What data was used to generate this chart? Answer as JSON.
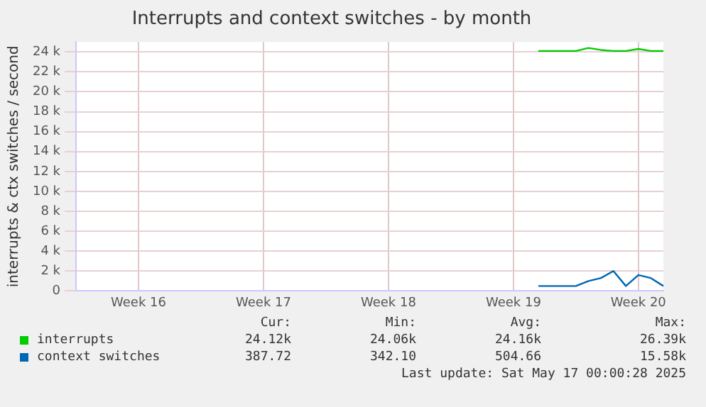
{
  "chart_data": {
    "type": "line",
    "title": "Interrupts and context switches - by month",
    "ylabel": "interrupts & ctx switches / second",
    "categories": [
      null,
      null,
      null,
      null,
      null,
      "Week 16",
      null,
      null,
      null,
      null,
      null,
      null,
      null,
      null,
      null,
      "Week 17",
      null,
      null,
      null,
      null,
      null,
      null,
      null,
      null,
      null,
      "Week 18",
      null,
      null,
      null,
      null,
      null,
      null,
      null,
      null,
      null,
      "Week 19",
      null,
      null,
      null,
      null,
      null,
      null,
      null,
      null,
      null,
      "Week 20",
      null,
      null
    ],
    "ylim": [
      0,
      25000
    ],
    "yticks": [
      0,
      {
        "value": 2000,
        "label": "2 k"
      },
      {
        "value": 4000,
        "label": "4 k"
      },
      {
        "value": 6000,
        "label": "6 k"
      },
      {
        "value": 8000,
        "label": "8 k"
      },
      {
        "value": 10000,
        "label": "10 k"
      },
      {
        "value": 12000,
        "label": "12 k"
      },
      {
        "value": 14000,
        "label": "14 k"
      },
      {
        "value": 16000,
        "label": "16 k"
      },
      {
        "value": 18000,
        "label": "18 k"
      },
      {
        "value": 20000,
        "label": "20 k"
      },
      {
        "value": 22000,
        "label": "22 k"
      },
      {
        "value": 24000,
        "label": "24 k"
      }
    ],
    "grid": true,
    "legend": "bottom",
    "marker": "none",
    "line_style": "solid",
    "series": [
      {
        "name": "interrupts",
        "color": "#00cc00",
        "values": [
          null,
          null,
          null,
          null,
          null,
          null,
          null,
          null,
          null,
          null,
          null,
          null,
          null,
          null,
          null,
          null,
          null,
          null,
          null,
          null,
          null,
          null,
          null,
          null,
          null,
          null,
          null,
          null,
          null,
          null,
          null,
          null,
          null,
          null,
          null,
          null,
          null,
          24100,
          24100,
          24100,
          24100,
          24400,
          24200,
          24100,
          24100,
          24300,
          24100,
          24100
        ]
      },
      {
        "name": "context switches",
        "color": "#0066b3",
        "values": [
          null,
          null,
          null,
          null,
          null,
          null,
          null,
          null,
          null,
          null,
          null,
          null,
          null,
          null,
          null,
          null,
          null,
          null,
          null,
          null,
          null,
          null,
          null,
          null,
          null,
          null,
          null,
          null,
          null,
          null,
          null,
          null,
          null,
          null,
          null,
          null,
          null,
          500,
          500,
          500,
          500,
          1000,
          1300,
          2000,
          500,
          1600,
          1300,
          500
        ]
      }
    ],
    "annotations": [
      "Cur:",
      "Min:",
      "Avg:",
      "Max:",
      "24.12k",
      "24.06k",
      "24.16k",
      "26.39k",
      "387.72",
      "342.10",
      "504.66",
      "15.58k",
      "Last update: Sat May 17 00:00:28 2025"
    ]
  }
}
